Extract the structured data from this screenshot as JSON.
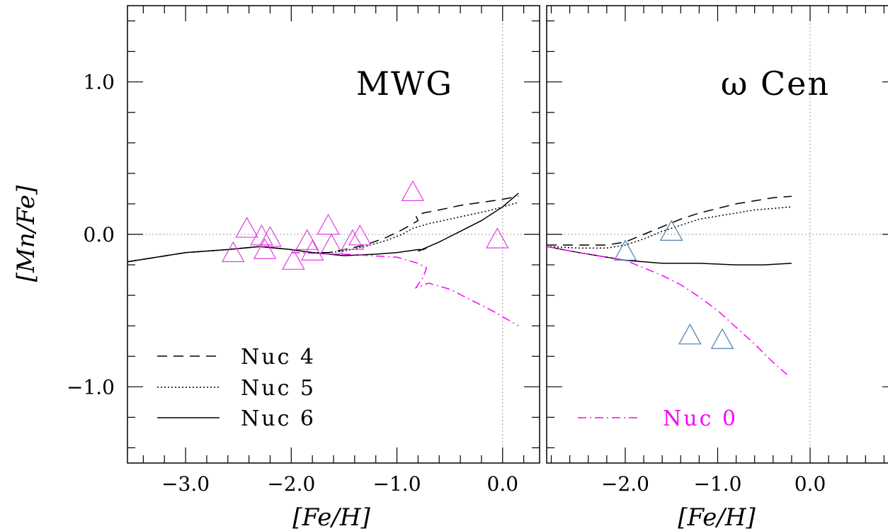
{
  "chart_data": [
    {
      "type": "line",
      "title": "MWG",
      "xlabel": "[Fe/H]",
      "ylabel": "[Mn/Fe]",
      "xlim": [
        -3.55,
        0.35
      ],
      "ylim": [
        -1.5,
        1.5
      ],
      "x_ticks": [
        -3.0,
        -2.0,
        -1.0,
        0.0
      ],
      "x_tick_labels": [
        "−3.0",
        "−2.0",
        "−1.0",
        "0.0"
      ],
      "y_ticks": [
        1.0,
        0.0,
        -1.0
      ],
      "y_tick_labels": [
        "1.0",
        "0.0",
        "−1.0"
      ],
      "reference_lines": {
        "y": 0.0,
        "x": 0.0
      },
      "legend_position": "bottom-left",
      "series": [
        {
          "name": "Nuc 4",
          "style": "dashed",
          "color": "#000000",
          "x": [
            -3.55,
            -3.0,
            -2.6,
            -2.3,
            -2.0,
            -1.8,
            -1.65,
            -1.5,
            -1.3,
            -1.1,
            -0.95,
            -0.85,
            -0.8,
            -0.82,
            -0.75,
            -0.6,
            -0.4,
            -0.2,
            0.0,
            0.15
          ],
          "y": [
            -0.18,
            -0.12,
            -0.1,
            -0.08,
            -0.1,
            -0.12,
            -0.12,
            -0.1,
            -0.07,
            -0.02,
            0.03,
            0.07,
            0.09,
            0.12,
            0.14,
            0.16,
            0.19,
            0.21,
            0.23,
            0.25
          ]
        },
        {
          "name": "Nuc 5",
          "style": "dotted",
          "color": "#000000",
          "x": [
            -3.55,
            -3.0,
            -2.6,
            -2.3,
            -2.0,
            -1.8,
            -1.65,
            -1.5,
            -1.3,
            -1.1,
            -0.95,
            -0.85,
            -0.8,
            -0.7,
            -0.5,
            -0.3,
            -0.1,
            0.15
          ],
          "y": [
            -0.18,
            -0.12,
            -0.1,
            -0.08,
            -0.1,
            -0.12,
            -0.12,
            -0.11,
            -0.08,
            -0.04,
            0.0,
            0.04,
            0.05,
            0.07,
            0.1,
            0.13,
            0.16,
            0.21
          ]
        },
        {
          "name": "Nuc 6",
          "style": "solid",
          "color": "#000000",
          "x": [
            -3.55,
            -3.0,
            -2.6,
            -2.3,
            -2.0,
            -1.8,
            -1.5,
            -1.2,
            -1.0,
            -0.8,
            -0.75,
            -0.72,
            -0.8,
            -0.6,
            -0.4,
            -0.2,
            0.0,
            0.15
          ],
          "y": [
            -0.18,
            -0.12,
            -0.1,
            -0.08,
            -0.1,
            -0.12,
            -0.14,
            -0.13,
            -0.12,
            -0.1,
            -0.1,
            -0.09,
            -0.11,
            -0.05,
            0.02,
            0.09,
            0.18,
            0.27
          ]
        },
        {
          "name": "",
          "style": "dashdot",
          "color": "#ff00ff",
          "x": [
            -2.0,
            -1.5,
            -1.0,
            -0.8,
            -0.72,
            -0.75,
            -0.82,
            -0.7,
            -0.5,
            -0.3,
            -0.1,
            0.0,
            0.15
          ],
          "y": [
            -0.12,
            -0.13,
            -0.15,
            -0.19,
            -0.22,
            -0.28,
            -0.35,
            -0.32,
            -0.36,
            -0.43,
            -0.5,
            -0.54,
            -0.6
          ]
        }
      ],
      "points": {
        "marker": "triangle-open",
        "color": "#e040e0",
        "x": [
          -2.55,
          -2.42,
          -2.28,
          -2.25,
          -2.2,
          -1.98,
          -1.85,
          -1.8,
          -1.65,
          -1.62,
          -1.42,
          -1.35,
          -0.85,
          -0.05
        ],
        "y": [
          -0.13,
          0.03,
          -0.02,
          -0.11,
          -0.03,
          -0.18,
          -0.05,
          -0.12,
          0.05,
          -0.08,
          -0.05,
          -0.02,
          0.27,
          -0.04
        ]
      }
    },
    {
      "type": "line",
      "title": "ω Cen",
      "xlabel": "[Fe/H]",
      "ylabel": "",
      "xlim": [
        -2.85,
        0.95
      ],
      "ylim": [
        -1.5,
        1.5
      ],
      "x_ticks": [
        -2.0,
        -1.0,
        0.0
      ],
      "x_tick_labels": [
        "−2.0",
        "−1.0",
        "0.0"
      ],
      "reference_lines": {
        "y": 0.0,
        "x": 0.0
      },
      "legend_position": "bottom-left",
      "series": [
        {
          "name": "Nuc 4",
          "style": "dashed",
          "color": "#000000",
          "x": [
            -2.85,
            -2.5,
            -2.2,
            -2.0,
            -1.8,
            -1.6,
            -1.4,
            -1.2,
            -1.0,
            -0.8,
            -0.6,
            -0.4,
            -0.2
          ],
          "y": [
            -0.07,
            -0.07,
            -0.07,
            -0.05,
            0.0,
            0.05,
            0.1,
            0.14,
            0.17,
            0.2,
            0.22,
            0.24,
            0.25
          ]
        },
        {
          "name": "Nuc 5",
          "style": "dotted",
          "color": "#000000",
          "x": [
            -2.85,
            -2.5,
            -2.2,
            -2.0,
            -1.8,
            -1.6,
            -1.4,
            -1.2,
            -1.0,
            -0.8,
            -0.6,
            -0.4,
            -0.2
          ],
          "y": [
            -0.08,
            -0.09,
            -0.09,
            -0.07,
            -0.03,
            0.02,
            0.06,
            0.1,
            0.12,
            0.14,
            0.16,
            0.17,
            0.18
          ]
        },
        {
          "name": "Nuc 6",
          "style": "solid",
          "color": "#000000",
          "x": [
            -2.85,
            -2.5,
            -2.2,
            -2.0,
            -1.6,
            -1.2,
            -0.8,
            -0.5,
            -0.2
          ],
          "y": [
            -0.08,
            -0.12,
            -0.15,
            -0.17,
            -0.19,
            -0.19,
            -0.2,
            -0.2,
            -0.19
          ]
        },
        {
          "name": "Nuc 0",
          "style": "dashdot",
          "color": "#ff00ff",
          "x": [
            -2.85,
            -2.5,
            -2.2,
            -2.0,
            -1.8,
            -1.6,
            -1.4,
            -1.2,
            -1.0,
            -0.8,
            -0.6,
            -0.4,
            -0.25
          ],
          "y": [
            -0.08,
            -0.12,
            -0.15,
            -0.17,
            -0.22,
            -0.27,
            -0.33,
            -0.41,
            -0.5,
            -0.61,
            -0.72,
            -0.84,
            -0.92
          ]
        }
      ],
      "points": {
        "marker": "triangle-open",
        "color": "#4a7fb0",
        "x": [
          -2.0,
          -1.5,
          -1.3,
          -0.95
        ],
        "y": [
          -0.12,
          0.01,
          -0.67,
          -0.7
        ]
      }
    }
  ],
  "legend": {
    "items": [
      {
        "label": "Nuc 4",
        "style": "dashed",
        "color": "#000000"
      },
      {
        "label": "Nuc 5",
        "style": "dotted",
        "color": "#000000"
      },
      {
        "label": "Nuc 6",
        "style": "solid",
        "color": "#000000"
      }
    ],
    "items_right": [
      {
        "label": "Nuc 0",
        "style": "dashdot",
        "color": "#ff00ff"
      }
    ]
  }
}
